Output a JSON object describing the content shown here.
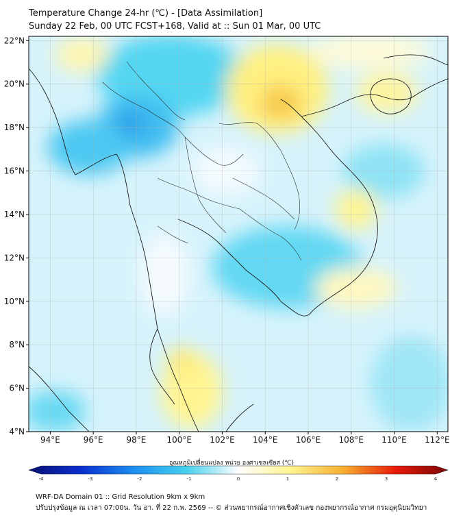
{
  "title_line1": "Temperature Change 24-hr (℃) - [Data Assimilation]",
  "title_line2": "Sunday 22 Feb, 00 UTC FCST+168, Valid at :: Sun 01 Mar, 00 UTC",
  "map": {
    "lon_range": [
      93.0,
      112.5
    ],
    "lat_range": [
      4.0,
      22.2
    ],
    "lat_ticks": [
      "22°N",
      "20°N",
      "18°N",
      "16°N",
      "14°N",
      "12°N",
      "10°N",
      "8°N",
      "6°N",
      "4°N"
    ],
    "lat_values": [
      22,
      20,
      18,
      16,
      14,
      12,
      10,
      8,
      6,
      4
    ],
    "lon_ticks": [
      "94°E",
      "96°E",
      "98°E",
      "100°E",
      "102°E",
      "104°E",
      "106°E",
      "108°E",
      "110°E",
      "112°E"
    ],
    "lon_values": [
      94,
      96,
      98,
      100,
      102,
      104,
      106,
      108,
      110,
      112
    ],
    "gridlines": true
  },
  "colorbar": {
    "label": "อุณหภูมิเปลี่ยนแปลง หน่วย องศาเซลเซียส (℃)",
    "ticks": [
      "-4",
      "-3",
      "-2",
      "-1",
      "0",
      "1",
      "2",
      "3",
      "4"
    ],
    "min": -4,
    "max": 4,
    "colors": [
      "#081070",
      "#0a2fd0",
      "#1e8ff0",
      "#45d0ee",
      "#ffffff",
      "#fff490",
      "#f6b030",
      "#e81a0a",
      "#7a0606"
    ]
  },
  "footer_line1": "WRF-DA Domain 01 :: Grid Resolution 9km x 9km",
  "footer_line2": "ปรับปรุงข้อมูล ณ เวลา 07:00น. วัน อา. ที่ 22 ก.พ. 2569 -- © ส่วนพยากรณ์อากาศเชิงตัวเลข กองพยากรณ์อากาศ กรมอุตุนิยมวิทยา"
}
